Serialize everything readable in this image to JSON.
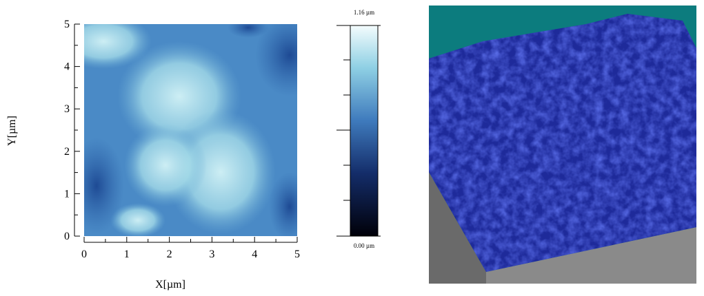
{
  "chart_data": {
    "type": "image",
    "xlabel": "X[µm]",
    "ylabel": "Y[µm]",
    "xlim": [
      0,
      5
    ],
    "ylim": [
      0,
      5
    ],
    "xticks": [
      0,
      1,
      2,
      3,
      4,
      5
    ],
    "yticks": [
      0,
      1,
      2,
      3,
      4,
      5
    ],
    "clim": [
      0,
      1.16
    ],
    "cticks": [
      {
        "value": 0,
        "label": "0.00 µm"
      },
      {
        "value": 1.16,
        "label": "1.16 µm"
      }
    ]
  }
}
